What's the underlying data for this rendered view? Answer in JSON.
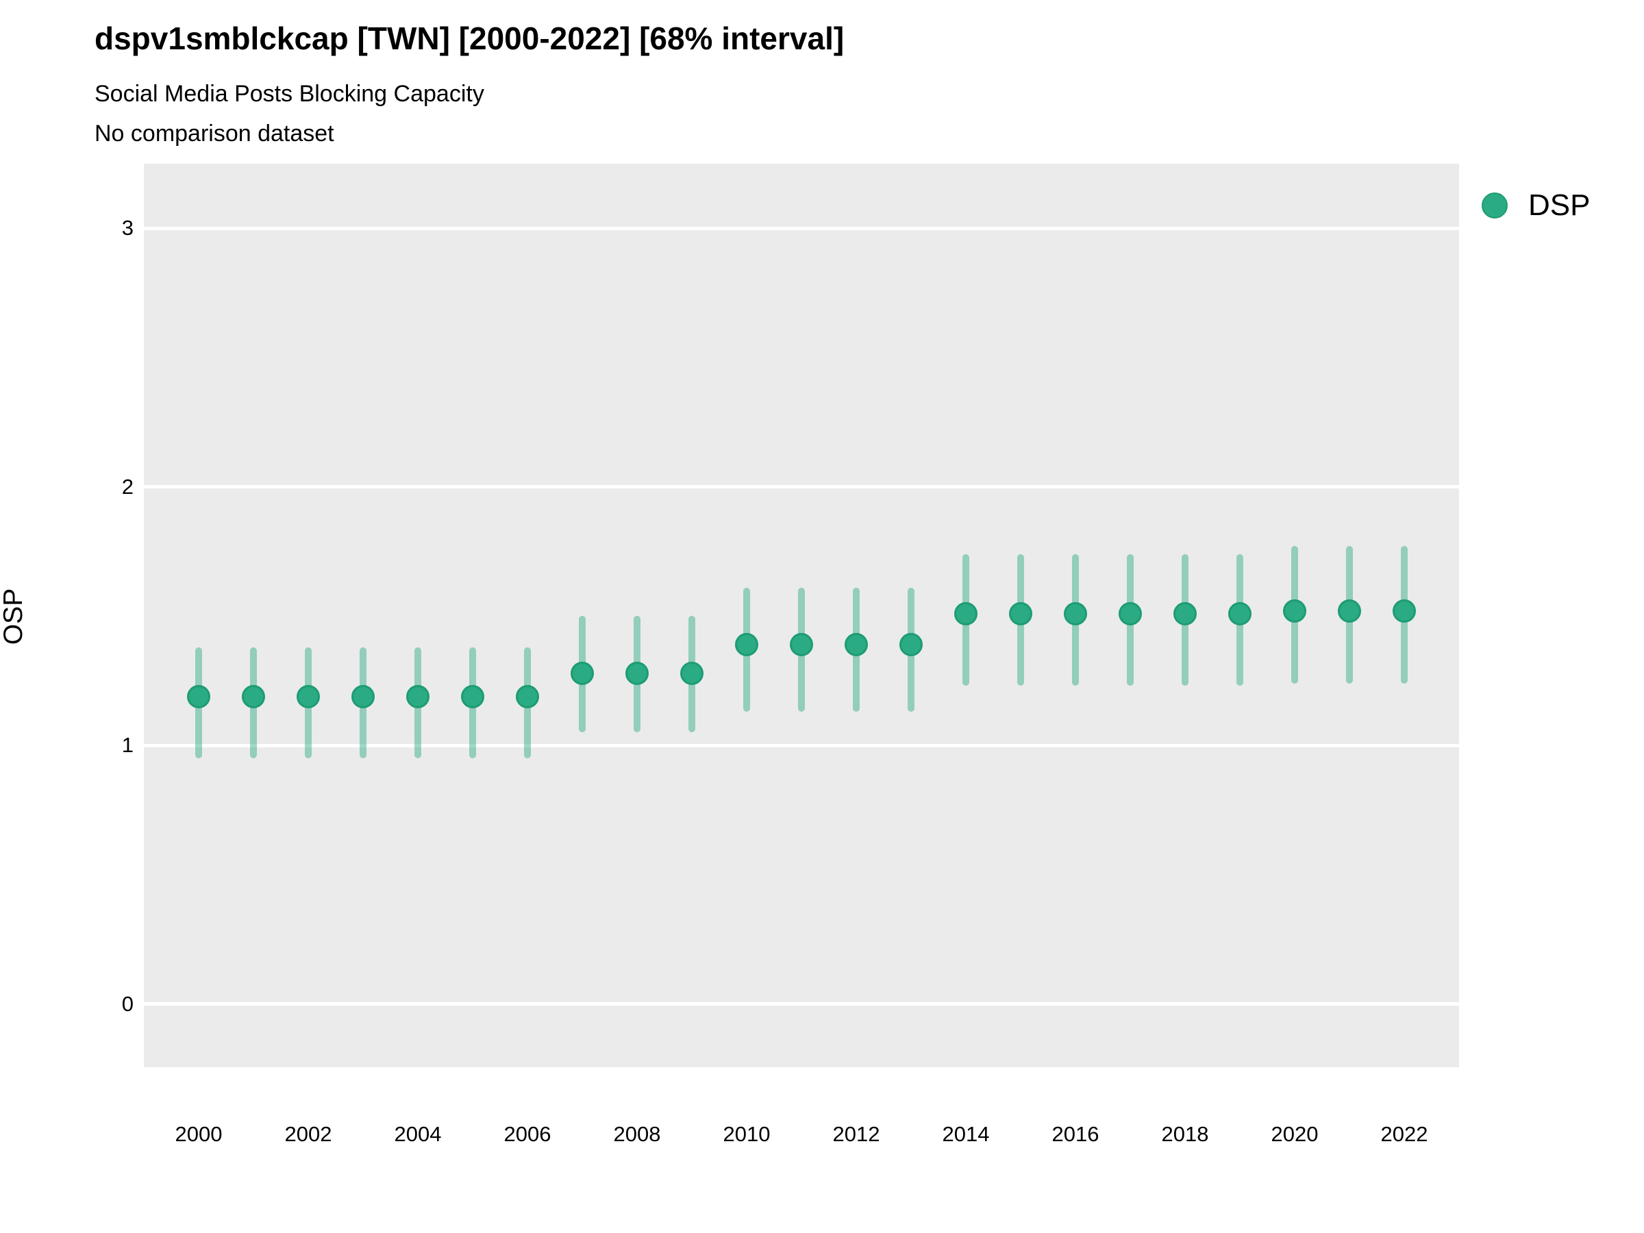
{
  "header": {
    "title": "dspv1smblckcap [TWN] [2000-2022] [68% interval]",
    "subtitle": "Social Media Posts Blocking Capacity",
    "note": "No comparison dataset"
  },
  "legend": {
    "position": "right",
    "items": [
      {
        "label": "DSP",
        "color": "#2bab84"
      }
    ]
  },
  "colors": {
    "point": "#2bab84",
    "point_border": "#1d9c73",
    "interval": "rgba(43,171,132,0.46)",
    "panel_bg": "#ebebeb",
    "gridline": "#ffffff",
    "text": "#000000"
  },
  "chart_data": {
    "type": "pointrange",
    "title": "dspv1smblckcap [TWN] [2000-2022] [68% interval]",
    "subtitle": "Social Media Posts Blocking Capacity",
    "note": "No comparison dataset",
    "xlabel": "",
    "ylabel": "OSP",
    "interval_level": "68%",
    "grid": "major-horizontal-white-on-grey",
    "legend_position": "right",
    "x_domain": [
      1999,
      2023
    ],
    "y_domain": [
      -0.244,
      3.249
    ],
    "x_ticks": [
      2000,
      2002,
      2004,
      2006,
      2008,
      2010,
      2012,
      2014,
      2016,
      2018,
      2020,
      2022
    ],
    "y_ticks": [
      0,
      1,
      2,
      3
    ],
    "series": [
      {
        "name": "DSP",
        "points": [
          {
            "year": 2000,
            "value": 1.19,
            "low": 0.95,
            "high": 1.38
          },
          {
            "year": 2001,
            "value": 1.19,
            "low": 0.95,
            "high": 1.38
          },
          {
            "year": 2002,
            "value": 1.19,
            "low": 0.95,
            "high": 1.38
          },
          {
            "year": 2003,
            "value": 1.19,
            "low": 0.95,
            "high": 1.38
          },
          {
            "year": 2004,
            "value": 1.19,
            "low": 0.95,
            "high": 1.38
          },
          {
            "year": 2005,
            "value": 1.19,
            "low": 0.95,
            "high": 1.38
          },
          {
            "year": 2006,
            "value": 1.19,
            "low": 0.95,
            "high": 1.38
          },
          {
            "year": 2007,
            "value": 1.28,
            "low": 1.05,
            "high": 1.5
          },
          {
            "year": 2008,
            "value": 1.28,
            "low": 1.05,
            "high": 1.5
          },
          {
            "year": 2009,
            "value": 1.28,
            "low": 1.05,
            "high": 1.5
          },
          {
            "year": 2010,
            "value": 1.39,
            "low": 1.13,
            "high": 1.61
          },
          {
            "year": 2011,
            "value": 1.39,
            "low": 1.13,
            "high": 1.61
          },
          {
            "year": 2012,
            "value": 1.39,
            "low": 1.13,
            "high": 1.61
          },
          {
            "year": 2013,
            "value": 1.39,
            "low": 1.13,
            "high": 1.61
          },
          {
            "year": 2014,
            "value": 1.51,
            "low": 1.23,
            "high": 1.74
          },
          {
            "year": 2015,
            "value": 1.51,
            "low": 1.23,
            "high": 1.74
          },
          {
            "year": 2016,
            "value": 1.51,
            "low": 1.23,
            "high": 1.74
          },
          {
            "year": 2017,
            "value": 1.51,
            "low": 1.23,
            "high": 1.74
          },
          {
            "year": 2018,
            "value": 1.51,
            "low": 1.23,
            "high": 1.74
          },
          {
            "year": 2019,
            "value": 1.51,
            "low": 1.23,
            "high": 1.74
          },
          {
            "year": 2020,
            "value": 1.52,
            "low": 1.24,
            "high": 1.77
          },
          {
            "year": 2021,
            "value": 1.52,
            "low": 1.24,
            "high": 1.77
          },
          {
            "year": 2022,
            "value": 1.52,
            "low": 1.24,
            "high": 1.77
          }
        ]
      }
    ]
  }
}
